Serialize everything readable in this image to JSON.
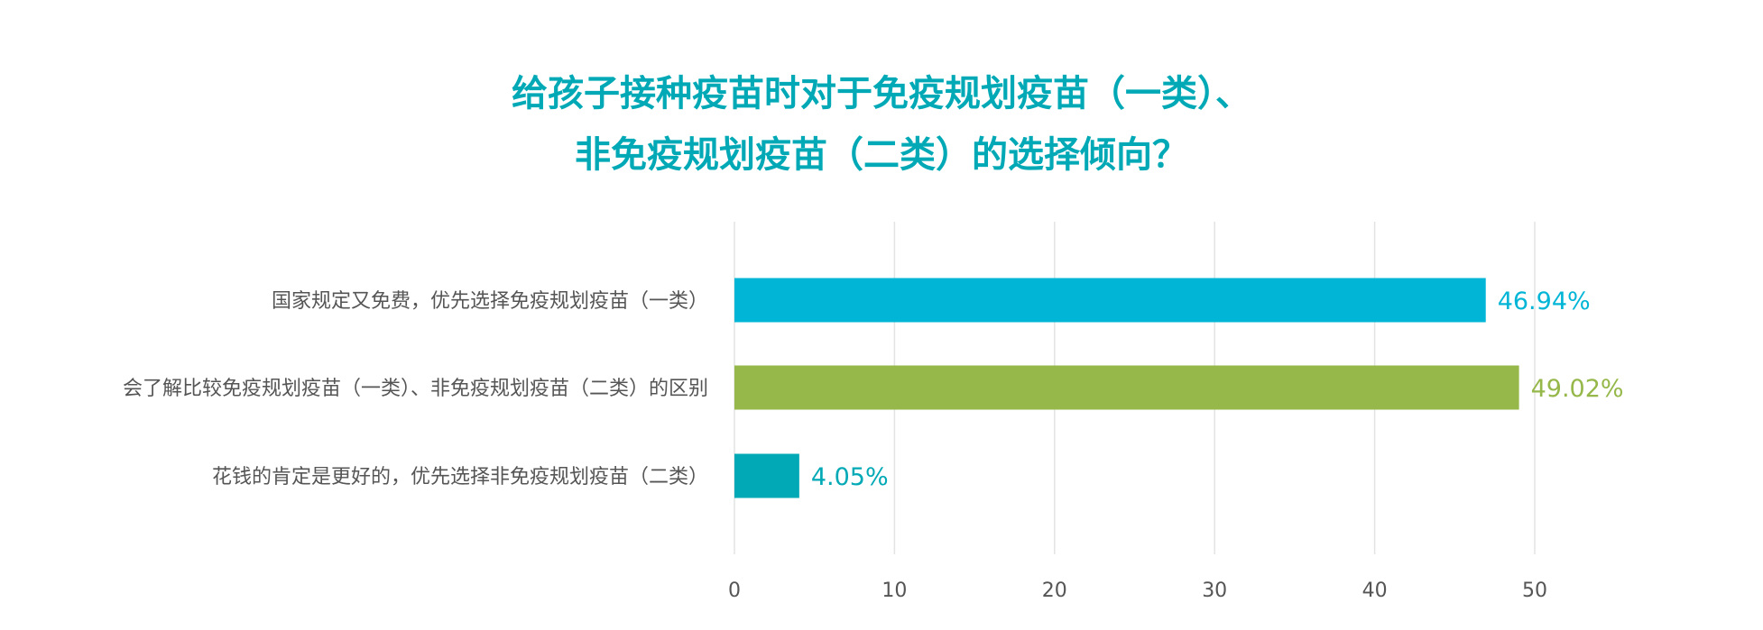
{
  "chart_data": {
    "type": "bar",
    "orientation": "horizontal",
    "title_lines": [
      "给孩子接种疫苗时对于免疫规划疫苗（一类）、",
      "非免疫规划疫苗（二类）的选择倾向？"
    ],
    "categories": [
      "国家规定又免费，优先选择免疫规划疫苗（一类）",
      "会了解比较免疫规划疫苗（一类）、非免疫规划疫苗（二类）的区别",
      "花钱的肯定是更好的，优先选择非免疫规划疫苗（二类）"
    ],
    "values": [
      46.94,
      49.02,
      4.05
    ],
    "data_labels": [
      "46.94%",
      "49.02%",
      "4.05%"
    ],
    "colors": [
      "#00B5D6",
      "#96B84A",
      "#00A9B5"
    ],
    "xlim": [
      0,
      50
    ],
    "xticks": [
      "0",
      "10",
      "20",
      "30",
      "40",
      "50"
    ],
    "grid": true,
    "xlabel": "",
    "ylabel": ""
  }
}
